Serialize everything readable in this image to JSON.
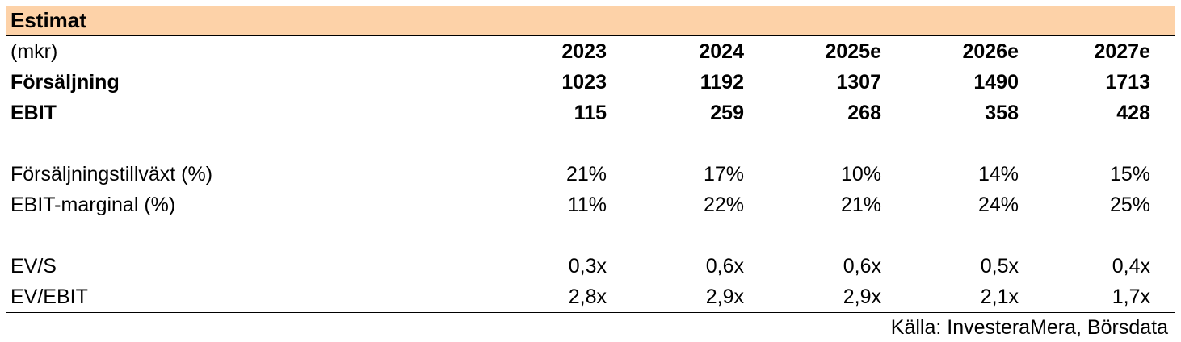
{
  "title": "Estimat",
  "header": {
    "label": "(mkr)",
    "years": [
      "2023",
      "2024",
      "2025e",
      "2026e",
      "2027e"
    ]
  },
  "rows": {
    "sales": {
      "label": "Försäljning",
      "values": [
        "1023",
        "1192",
        "1307",
        "1490",
        "1713"
      ]
    },
    "ebit": {
      "label": "EBIT",
      "values": [
        "115",
        "259",
        "268",
        "358",
        "428"
      ]
    },
    "growth": {
      "label": "Försäljningstillväxt (%)",
      "values": [
        "21%",
        "17%",
        "10%",
        "14%",
        "15%"
      ]
    },
    "margin": {
      "label": "EBIT-marginal (%)",
      "values": [
        "11%",
        "22%",
        "21%",
        "24%",
        "25%"
      ]
    },
    "evs": {
      "label": "EV/S",
      "values": [
        "0,3x",
        "0,6x",
        "0,6x",
        "0,5x",
        "0,4x"
      ]
    },
    "evebit": {
      "label": "EV/EBIT",
      "values": [
        "2,8x",
        "2,9x",
        "2,9x",
        "2,1x",
        "1,7x"
      ]
    }
  },
  "source": "Källa: InvesteraMera, Börsdata",
  "colors": {
    "title_bg": "#fdd2a8"
  }
}
